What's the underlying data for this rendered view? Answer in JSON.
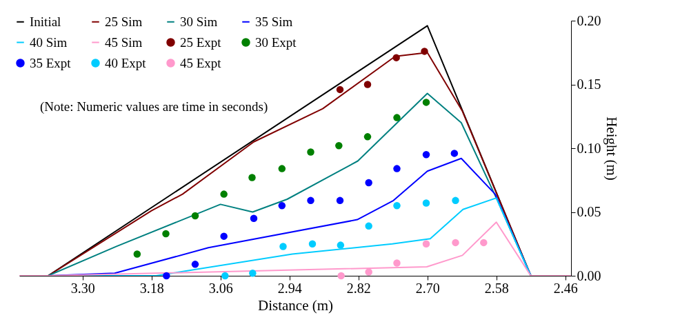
{
  "chart_data": {
    "type": "line",
    "xlabel": "Distance (m)",
    "ylabel": "Height (m)",
    "xlim": [
      3.41,
      2.45
    ],
    "xticks": [
      {
        "value": 3.3,
        "label": "3.30"
      },
      3.18,
      3.06,
      2.94,
      2.82,
      {
        "value": 2.7,
        "label": "2.70"
      },
      2.58,
      2.46
    ],
    "ylim": [
      0,
      0.2
    ],
    "yticks": [
      {
        "value": 0,
        "label": "0.00"
      },
      0.05,
      {
        "value": 0.1,
        "label": "0.10"
      },
      0.15,
      {
        "value": 0.2,
        "label": "0.20"
      }
    ],
    "grid": false,
    "legend": "top left",
    "annotations": [
      "(Note: Numeric values are time in seconds)"
    ],
    "series": [
      {
        "name": "Initial",
        "type": "line",
        "color": "#000000",
        "x": [
          3.41,
          3.36,
          2.7,
          2.52,
          2.45
        ],
        "values": [
          0,
          0,
          0.196,
          0,
          0
        ]
      },
      {
        "name": "25 Sim",
        "type": "line",
        "color": "#800000",
        "x": [
          3.41,
          3.36,
          3.18,
          3.126,
          3.002,
          2.882,
          2.756,
          2.7,
          2.639,
          2.52,
          2.45
        ],
        "values": [
          0,
          0,
          0.051,
          0.064,
          0.105,
          0.131,
          0.172,
          0.175,
          0.129,
          0,
          0
        ]
      },
      {
        "name": "30 Sim",
        "type": "line",
        "color": "#008080",
        "x": [
          3.41,
          3.36,
          3.241,
          3.06,
          3.004,
          2.944,
          2.821,
          2.7,
          2.641,
          2.58,
          2.52,
          2.45
        ],
        "values": [
          0,
          0,
          0.023,
          0.056,
          0.05,
          0.06,
          0.09,
          0.143,
          0.12,
          0.061,
          0,
          0
        ]
      },
      {
        "name": "35 Sim",
        "type": "line",
        "color": "#0000ff",
        "x": [
          3.41,
          3.36,
          3.244,
          3.081,
          2.822,
          2.759,
          2.7,
          2.641,
          2.582,
          2.52,
          2.45
        ],
        "values": [
          0,
          0,
          0.002,
          0.022,
          0.044,
          0.059,
          0.082,
          0.092,
          0.064,
          0,
          0
        ]
      },
      {
        "name": "40 Sim",
        "type": "line",
        "color": "#00ccff",
        "x": [
          3.41,
          3.36,
          3.172,
          2.935,
          2.761,
          2.695,
          2.638,
          2.58,
          2.52,
          2.45
        ],
        "values": [
          0,
          0,
          0,
          0.017,
          0.025,
          0.029,
          0.052,
          0.061,
          0,
          0
        ]
      },
      {
        "name": "45 Sim",
        "type": "line",
        "color": "#ff99cc",
        "x": [
          3.41,
          3.36,
          2.701,
          2.639,
          2.58,
          2.52,
          2.45
        ],
        "values": [
          0,
          0,
          0.007,
          0.016,
          0.042,
          0,
          0
        ]
      },
      {
        "name": "25 Expt",
        "type": "scatter",
        "marker": "circle",
        "color": "#800000",
        "x": [
          2.852,
          2.804,
          2.754,
          2.705
        ],
        "values": [
          0.146,
          0.15,
          0.171,
          0.176
        ]
      },
      {
        "name": "30 Expt",
        "type": "scatter",
        "marker": "circle",
        "color": "#008000",
        "x": [
          3.205,
          3.155,
          3.104,
          3.054,
          3.005,
          2.953,
          2.903,
          2.854,
          2.804,
          2.753,
          2.702
        ],
        "values": [
          0.017,
          0.033,
          0.047,
          0.064,
          0.077,
          0.084,
          0.097,
          0.102,
          0.109,
          0.124,
          0.136
        ]
      },
      {
        "name": "35 Expt",
        "type": "scatter",
        "marker": "circle",
        "color": "#0000ff",
        "x": [
          3.154,
          3.104,
          3.054,
          3.002,
          2.953,
          2.903,
          2.852,
          2.802,
          2.753,
          2.702,
          2.653
        ],
        "values": [
          0,
          0.009,
          0.031,
          0.045,
          0.055,
          0.059,
          0.059,
          0.073,
          0.084,
          0.095,
          0.096
        ]
      },
      {
        "name": "40 Expt",
        "type": "scatter",
        "marker": "circle",
        "color": "#00ccff",
        "x": [
          3.052,
          3.004,
          2.951,
          2.9,
          2.851,
          2.802,
          2.753,
          2.702,
          2.651
        ],
        "values": [
          0,
          0.002,
          0.023,
          0.025,
          0.024,
          0.039,
          0.055,
          0.057,
          0.059
        ]
      },
      {
        "name": "45 Expt",
        "type": "scatter",
        "marker": "circle",
        "color": "#ff99cc",
        "x": [
          2.85,
          2.802,
          2.753,
          2.702,
          2.651,
          2.602
        ],
        "values": [
          0,
          0.003,
          0.01,
          0.025,
          0.026,
          0.026
        ]
      }
    ]
  }
}
